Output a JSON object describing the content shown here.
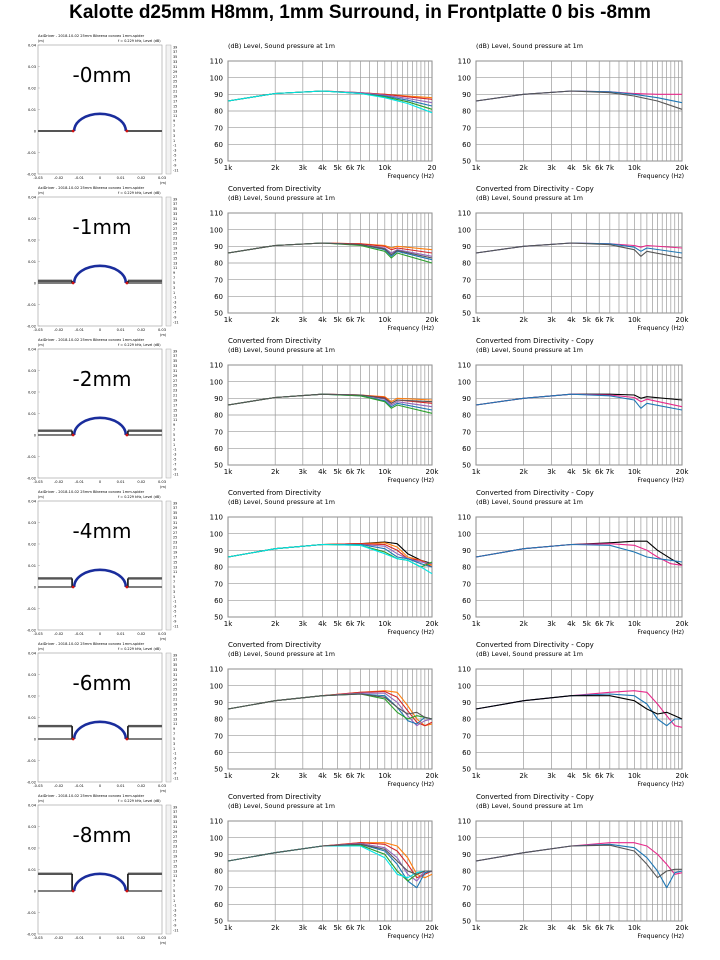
{
  "page_title": "Kalotte d25mm H8mm, 1mm Surround, in Frontplatte 0 bis -8mm",
  "sim": {
    "header": "AxiDriver - 2018-10-02 25mm Bikeena convex 1mm-spider",
    "subheader": "f = 0.229 kHz, Level (dB)",
    "x_unit": "(m)",
    "y_unit": "(m)",
    "x_ticks": [
      "-0.03",
      "-0.02",
      "-0.01",
      "0",
      "0.01",
      "0.02",
      "0.03"
    ],
    "y_ticks": [
      "0.04",
      "0.03",
      "0.02",
      "0.01",
      "0",
      "-0.01",
      "-0.02"
    ],
    "scale": [
      "39",
      "37",
      "35",
      "33",
      "31",
      "29",
      "27",
      "25",
      "23",
      "21",
      "19",
      "17",
      "15",
      "13",
      "11",
      "9",
      "7",
      "5",
      "3",
      "1",
      "-1",
      "-3",
      "-5",
      "-7",
      "-9",
      "-11"
    ],
    "colors": {
      "dome": "#1a2d9c",
      "baffle": "#555555",
      "surround": "#cc1111"
    }
  },
  "rows": [
    {
      "label": "-0mm",
      "depth": 0
    },
    {
      "label": "-1mm",
      "depth": 1
    },
    {
      "label": "-2mm",
      "depth": 2
    },
    {
      "label": "-4mm",
      "depth": 4
    },
    {
      "label": "-6mm",
      "depth": 6
    },
    {
      "label": "-8mm",
      "depth": 8
    }
  ],
  "graphs": {
    "title_left": "Converted from Directivity",
    "title_right": "Converted from Directivity - Copy",
    "subtitle": "(dB)  Level, Sound pressure at 1m",
    "xlabel": "Frequency  (Hz)",
    "x_ticks": [
      {
        "f": 1000,
        "l": "1k"
      },
      {
        "f": 2000,
        "l": "2k"
      },
      {
        "f": 3000,
        "l": "3k"
      },
      {
        "f": 4000,
        "l": "4k"
      },
      {
        "f": 5000,
        "l": "5k"
      },
      {
        "f": 6000,
        "l": "6k"
      },
      {
        "f": 7000,
        "l": "7k"
      },
      {
        "f": 10000,
        "l": "10k"
      },
      {
        "f": 20000,
        "l": "20k"
      }
    ],
    "x_ticks_first_row_last": "20",
    "ylim": [
      50,
      110
    ],
    "y_ticks": [
      50,
      60,
      70,
      80,
      90,
      100,
      110
    ],
    "xlim": [
      1000,
      20000
    ]
  },
  "chart_data": [
    {
      "type": "line",
      "panel": "-0mm left",
      "x": [
        1000,
        2000,
        4000,
        7000,
        10000,
        14000,
        20000
      ],
      "series": [
        {
          "color": "#ff7f0e",
          "values": [
            86,
            90.5,
            92,
            91,
            90,
            89,
            88
          ]
        },
        {
          "color": "#d62728",
          "values": [
            86,
            90.5,
            92,
            91,
            90,
            88.5,
            87
          ]
        },
        {
          "color": "#9467bd",
          "values": [
            86,
            90.5,
            92,
            91,
            89.5,
            87.5,
            85
          ]
        },
        {
          "color": "#1f77b4",
          "values": [
            86,
            90.5,
            92,
            90.5,
            89,
            86.5,
            83
          ]
        },
        {
          "color": "#2ca02c",
          "values": [
            86,
            90.5,
            92,
            90.5,
            88.5,
            85.5,
            81
          ]
        },
        {
          "color": "#00e5e5",
          "values": [
            86,
            90.5,
            92,
            90.5,
            88,
            84.5,
            79
          ]
        }
      ]
    },
    {
      "type": "line",
      "panel": "-0mm right",
      "x": [
        1000,
        2000,
        4000,
        7000,
        10000,
        14000,
        20000
      ],
      "series": [
        {
          "color": "#e7298a",
          "values": [
            86,
            90,
            92,
            91.5,
            90.5,
            90,
            90
          ]
        },
        {
          "color": "#1f77b4",
          "values": [
            86,
            90,
            92,
            91.5,
            90,
            88,
            85
          ]
        },
        {
          "color": "#555555",
          "values": [
            86,
            90,
            92,
            91,
            89,
            86,
            81
          ]
        }
      ]
    },
    {
      "type": "line",
      "panel": "-1mm left",
      "x": [
        1000,
        2000,
        4000,
        7000,
        10000,
        11000,
        12000,
        20000
      ],
      "series": [
        {
          "color": "#ff7f0e",
          "values": [
            86,
            90.5,
            92,
            91.5,
            90.5,
            89,
            90,
            88
          ]
        },
        {
          "color": "#d62728",
          "values": [
            86,
            90.5,
            92,
            91.5,
            90,
            88,
            89,
            86
          ]
        },
        {
          "color": "#9467bd",
          "values": [
            86,
            90.5,
            92,
            91,
            89,
            86,
            88,
            84
          ]
        },
        {
          "color": "#1f77b4",
          "values": [
            86,
            90.5,
            92,
            91,
            88,
            84,
            87,
            82
          ]
        },
        {
          "color": "#2ca02c",
          "values": [
            86,
            90.5,
            92,
            90.5,
            87,
            83,
            86,
            80
          ]
        },
        {
          "color": "#555555",
          "values": [
            86,
            90.5,
            92,
            91,
            88.5,
            85,
            87.5,
            83
          ]
        }
      ]
    },
    {
      "type": "line",
      "panel": "-1mm right",
      "x": [
        1000,
        2000,
        4000,
        7000,
        10000,
        11000,
        12000,
        20000
      ],
      "series": [
        {
          "color": "#e7298a",
          "values": [
            86,
            90,
            92,
            91.5,
            90.5,
            89.5,
            90.5,
            89
          ]
        },
        {
          "color": "#1f77b4",
          "values": [
            86,
            90,
            92,
            91.5,
            89.5,
            87,
            89,
            86
          ]
        },
        {
          "color": "#555555",
          "values": [
            86,
            90,
            92,
            91,
            88,
            84,
            87,
            83
          ]
        }
      ]
    },
    {
      "type": "line",
      "panel": "-2mm left",
      "x": [
        1000,
        2000,
        4000,
        7000,
        10000,
        11000,
        12000,
        20000
      ],
      "series": [
        {
          "color": "#ff7f0e",
          "values": [
            86,
            90.5,
            92.5,
            92,
            91,
            88,
            90,
            89
          ]
        },
        {
          "color": "#d62728",
          "values": [
            86,
            90.5,
            92.5,
            92,
            90.5,
            87,
            89,
            87
          ]
        },
        {
          "color": "#9467bd",
          "values": [
            86,
            90.5,
            92.5,
            92,
            89.5,
            86,
            88,
            85
          ]
        },
        {
          "color": "#1f77b4",
          "values": [
            86,
            90.5,
            92.5,
            91.5,
            88.5,
            85,
            87,
            83
          ]
        },
        {
          "color": "#2ca02c",
          "values": [
            86,
            90.5,
            92.5,
            91.5,
            88,
            84,
            86,
            81
          ]
        },
        {
          "color": "#555555",
          "values": [
            86,
            90.5,
            92.5,
            92,
            90,
            87,
            89,
            88
          ]
        }
      ]
    },
    {
      "type": "line",
      "panel": "-2mm right",
      "x": [
        1000,
        2000,
        4000,
        7000,
        10000,
        11000,
        12000,
        20000
      ],
      "series": [
        {
          "color": "#000000",
          "values": [
            86,
            90,
            92.5,
            92.5,
            92,
            90,
            91,
            89
          ]
        },
        {
          "color": "#e7298a",
          "values": [
            86,
            90,
            92.5,
            92,
            90.5,
            88,
            89.5,
            85
          ]
        },
        {
          "color": "#1f77b4",
          "values": [
            86,
            90,
            92.5,
            91.5,
            89,
            84,
            87,
            83
          ]
        }
      ]
    },
    {
      "type": "line",
      "panel": "-4mm left",
      "x": [
        1000,
        2000,
        4000,
        7000,
        10000,
        12000,
        14000,
        17000,
        20000
      ],
      "series": [
        {
          "color": "#000000",
          "values": [
            86,
            91,
            93.5,
            94,
            95,
            94,
            88,
            84,
            82
          ]
        },
        {
          "color": "#ff7f0e",
          "values": [
            86,
            91,
            93.5,
            94,
            94.5,
            92,
            86,
            84,
            81
          ]
        },
        {
          "color": "#d62728",
          "values": [
            86,
            91,
            93.5,
            94,
            93.5,
            90,
            85,
            84,
            80
          ]
        },
        {
          "color": "#9467bd",
          "values": [
            86,
            91,
            93.5,
            93.5,
            92.5,
            88,
            85,
            83,
            82
          ]
        },
        {
          "color": "#1f77b4",
          "values": [
            86,
            91,
            93.5,
            93.5,
            91,
            86,
            85,
            82,
            80
          ]
        },
        {
          "color": "#2ca02c",
          "values": [
            86,
            91,
            93.5,
            93,
            89,
            85,
            84,
            80,
            83
          ]
        },
        {
          "color": "#00e5e5",
          "values": [
            86,
            91,
            93.5,
            93,
            88,
            85,
            84,
            80,
            76
          ]
        }
      ]
    },
    {
      "type": "line",
      "panel": "-4mm right",
      "x": [
        1000,
        2000,
        4000,
        7000,
        10000,
        12000,
        14000,
        17000,
        20000
      ],
      "series": [
        {
          "color": "#000000",
          "values": [
            86,
            91,
            93.5,
            94.5,
            95.5,
            95.5,
            90,
            85,
            81
          ]
        },
        {
          "color": "#e7298a",
          "values": [
            86,
            91,
            93.5,
            94,
            93,
            90,
            86,
            82,
            81
          ]
        },
        {
          "color": "#1f77b4",
          "values": [
            86,
            91,
            93.5,
            93,
            89,
            86,
            85,
            84,
            83
          ]
        }
      ]
    },
    {
      "type": "line",
      "panel": "-6mm left",
      "x": [
        1000,
        2000,
        4000,
        7000,
        10000,
        12000,
        14000,
        16000,
        18000,
        20000
      ],
      "series": [
        {
          "color": "#ff7f0e",
          "values": [
            86,
            91,
            94,
            96,
            97,
            96,
            88,
            80,
            76,
            77
          ]
        },
        {
          "color": "#d62728",
          "values": [
            86,
            91,
            94,
            96,
            96.5,
            93,
            85,
            78,
            76,
            78
          ]
        },
        {
          "color": "#9467bd",
          "values": [
            86,
            91,
            94,
            95.5,
            95.5,
            90,
            82,
            76,
            79,
            80
          ]
        },
        {
          "color": "#1f77b4",
          "values": [
            86,
            91,
            94,
            95,
            94,
            87,
            79,
            77,
            81,
            80
          ]
        },
        {
          "color": "#2ca02c",
          "values": [
            86,
            91,
            94,
            95,
            92,
            84,
            80,
            82,
            81,
            80
          ]
        },
        {
          "color": "#555555",
          "values": [
            86,
            91,
            94,
            95,
            93,
            87,
            83,
            84,
            81,
            80
          ]
        }
      ]
    },
    {
      "type": "line",
      "panel": "-6mm right",
      "x": [
        1000,
        2000,
        4000,
        7000,
        10000,
        12000,
        14000,
        16000,
        18000,
        20000
      ],
      "series": [
        {
          "color": "#e7298a",
          "values": [
            86,
            91,
            94,
            96,
            97,
            96,
            89,
            82,
            76,
            75
          ]
        },
        {
          "color": "#1f77b4",
          "values": [
            86,
            91,
            94,
            95,
            94,
            89,
            80,
            76,
            80,
            80
          ]
        },
        {
          "color": "#000000",
          "values": [
            86,
            91,
            94,
            94,
            91,
            86,
            83,
            84,
            82,
            80
          ]
        }
      ]
    },
    {
      "type": "line",
      "panel": "-8mm left",
      "x": [
        1000,
        2000,
        4000,
        7000,
        10000,
        12000,
        14000,
        16000,
        18000,
        20000
      ],
      "series": [
        {
          "color": "#ff7f0e",
          "values": [
            86,
            91,
            95,
            97,
            97,
            95,
            88,
            78,
            76,
            78
          ]
        },
        {
          "color": "#d62728",
          "values": [
            86,
            91,
            95,
            97,
            96,
            92,
            84,
            76,
            78,
            80
          ]
        },
        {
          "color": "#9467bd",
          "values": [
            86,
            91,
            95,
            96.5,
            94,
            88,
            78,
            74,
            80,
            80
          ]
        },
        {
          "color": "#1f77b4",
          "values": [
            86,
            91,
            95,
            96,
            92,
            84,
            74,
            70,
            79,
            80
          ]
        },
        {
          "color": "#2ca02c",
          "values": [
            86,
            91,
            95,
            95.5,
            90,
            80,
            74,
            78,
            80,
            80
          ]
        },
        {
          "color": "#00e5e5",
          "values": [
            86,
            91,
            95,
            95,
            88,
            78,
            76,
            79,
            80,
            80
          ]
        },
        {
          "color": "#555555",
          "values": [
            86,
            91,
            95,
            96,
            93,
            86,
            80,
            78,
            80,
            80
          ]
        }
      ]
    },
    {
      "type": "line",
      "panel": "-8mm right",
      "x": [
        1000,
        2000,
        4000,
        7000,
        10000,
        12000,
        14000,
        16000,
        18000,
        20000
      ],
      "series": [
        {
          "color": "#e7298a",
          "values": [
            86,
            91,
            95,
            97,
            97,
            95,
            90,
            84,
            78,
            79
          ]
        },
        {
          "color": "#1f77b4",
          "values": [
            86,
            91,
            95,
            96,
            94,
            88,
            80,
            70,
            79,
            80
          ]
        },
        {
          "color": "#555555",
          "values": [
            86,
            91,
            95,
            95.5,
            92,
            84,
            76,
            80,
            81,
            81
          ]
        }
      ]
    }
  ]
}
